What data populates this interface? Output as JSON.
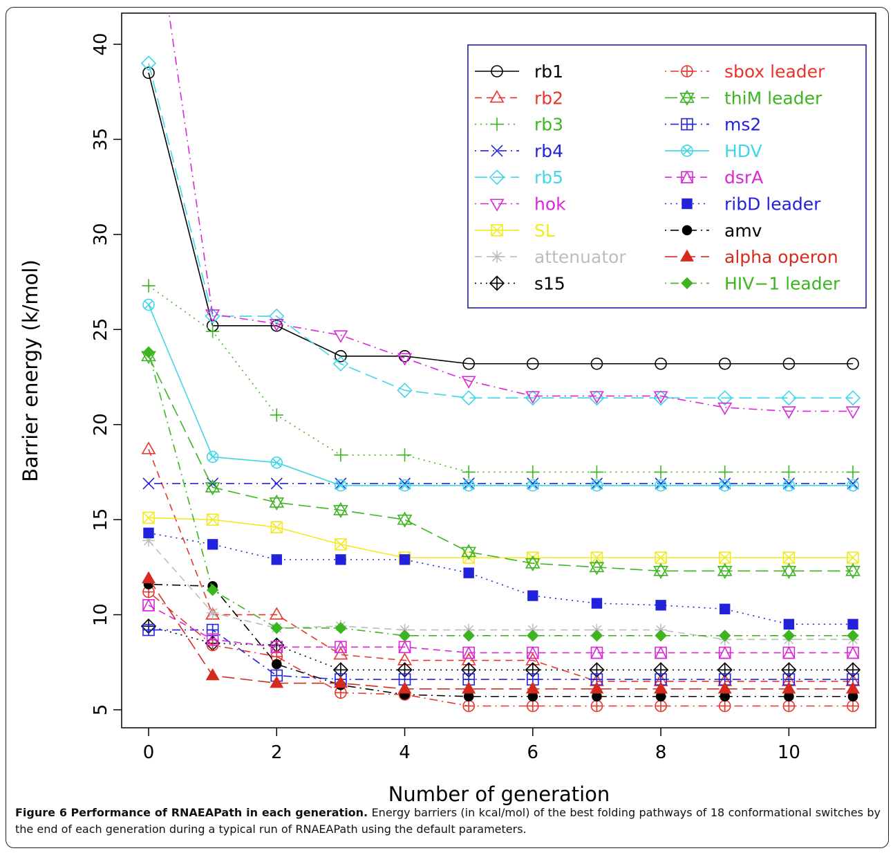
{
  "caption": {
    "figure_label": "Figure 6",
    "title": "Performance of RNAEAPath in each generation.",
    "text": "Energy barriers (in kcal/mol) of the best folding pathways of 18 conformational switches by the end of each generation during a typical run of RNAEAPath using the default parameters."
  },
  "chart_data": {
    "type": "line",
    "xlabel": "Number of generation",
    "ylabel": "Barrier energy (k/mol)",
    "xlim": [
      -0.6,
      11.6
    ],
    "ylim": [
      4.3,
      41
    ],
    "x_ticks": [
      0,
      2,
      4,
      6,
      8,
      10
    ],
    "y_ticks": [
      5,
      10,
      15,
      20,
      25,
      30,
      35,
      40
    ],
    "grid": false,
    "legend_position": "top-right",
    "x": [
      0,
      1,
      2,
      3,
      4,
      5,
      6,
      7,
      8,
      9,
      10,
      11
    ],
    "series": [
      {
        "name": "rb1",
        "color": "#000000",
        "dash": "solid",
        "marker": "circle-open",
        "values": [
          38.5,
          25.2,
          25.2,
          23.6,
          23.6,
          23.2,
          23.2,
          23.2,
          23.2,
          23.2,
          23.2,
          23.2
        ]
      },
      {
        "name": "rb2",
        "color": "#e8342a",
        "dash": "dashed",
        "marker": "triangle-up-open",
        "values": [
          18.7,
          10.0,
          10.0,
          7.9,
          7.6,
          7.6,
          7.6,
          6.5,
          6.5,
          6.5,
          6.5,
          6.5
        ]
      },
      {
        "name": "rb3",
        "color": "#3cb521",
        "dash": "dotted",
        "marker": "plus",
        "values": [
          27.3,
          24.9,
          20.5,
          18.4,
          18.4,
          17.5,
          17.5,
          17.5,
          17.5,
          17.5,
          17.5,
          17.5
        ]
      },
      {
        "name": "rb4",
        "color": "#2222dd",
        "dash": "dotdash",
        "marker": "cross",
        "values": [
          16.9,
          16.9,
          16.9,
          16.9,
          16.9,
          16.9,
          16.9,
          16.9,
          16.9,
          16.9,
          16.9,
          16.9
        ]
      },
      {
        "name": "rb5",
        "color": "#3fd6e6",
        "dash": "longdash",
        "marker": "diamond-open",
        "values": [
          39.0,
          25.7,
          25.7,
          23.2,
          21.8,
          21.4,
          21.4,
          21.4,
          21.4,
          21.4,
          21.4,
          21.4
        ]
      },
      {
        "name": "hok",
        "color": "#d728d7",
        "dash": "dotdash",
        "marker": "triangle-down-open",
        "values": [
          49.0,
          25.8,
          25.3,
          24.7,
          23.5,
          22.3,
          21.5,
          21.5,
          21.5,
          20.9,
          20.7,
          20.7
        ]
      },
      {
        "name": "SL",
        "color": "#f2ea1f",
        "dash": "solid",
        "marker": "square-x",
        "values": [
          15.1,
          15.0,
          14.6,
          13.7,
          13.0,
          13.0,
          13.0,
          13.0,
          13.0,
          13.0,
          13.0,
          13.0
        ]
      },
      {
        "name": "attenuator",
        "color": "#bdbdbd",
        "dash": "dashed",
        "marker": "asterisk",
        "values": [
          13.9,
          10.1,
          9.3,
          9.4,
          9.2,
          9.2,
          9.2,
          9.2,
          9.2,
          8.7,
          8.7,
          8.7
        ]
      },
      {
        "name": "s15",
        "color": "#000000",
        "dash": "dotted",
        "marker": "diamond-plus",
        "values": [
          9.4,
          8.5,
          8.4,
          7.1,
          7.1,
          7.1,
          7.1,
          7.1,
          7.1,
          7.1,
          7.1,
          7.1
        ]
      },
      {
        "name": "sbox leader",
        "color": "#e8342a",
        "dash": "dotdash",
        "marker": "circle-plus",
        "values": [
          11.2,
          8.4,
          7.8,
          5.9,
          5.8,
          5.2,
          5.2,
          5.2,
          5.2,
          5.2,
          5.2,
          5.2
        ]
      },
      {
        "name": "thiM leader",
        "color": "#3cb521",
        "dash": "longdash",
        "marker": "star-of-david",
        "values": [
          23.6,
          16.7,
          15.9,
          15.5,
          15.0,
          13.3,
          12.7,
          12.5,
          12.3,
          12.3,
          12.3,
          12.3
        ]
      },
      {
        "name": "ms2",
        "color": "#2222dd",
        "dash": "dotdash",
        "marker": "square-plus",
        "values": [
          9.2,
          9.2,
          6.8,
          6.6,
          6.6,
          6.6,
          6.6,
          6.6,
          6.6,
          6.6,
          6.6,
          6.6
        ]
      },
      {
        "name": "HDV",
        "color": "#3fd6e6",
        "dash": "solid",
        "marker": "circle-x",
        "values": [
          26.3,
          18.3,
          18.0,
          16.8,
          16.8,
          16.8,
          16.8,
          16.8,
          16.8,
          16.8,
          16.8,
          16.8
        ]
      },
      {
        "name": "dsrA",
        "color": "#d728d7",
        "dash": "dashed",
        "marker": "square-triangle",
        "values": [
          10.5,
          8.7,
          8.3,
          8.3,
          8.3,
          8.0,
          8.0,
          8.0,
          8.0,
          8.0,
          8.0,
          8.0
        ]
      },
      {
        "name": "ribD leader",
        "color": "#2222dd",
        "dash": "dotted",
        "marker": "square-filled",
        "values": [
          14.3,
          13.7,
          12.9,
          12.9,
          12.9,
          12.2,
          11.0,
          10.6,
          10.5,
          10.3,
          9.5,
          9.5
        ]
      },
      {
        "name": "amv",
        "color": "#000000",
        "dash": "dotdash",
        "marker": "circle-filled",
        "values": [
          11.6,
          11.5,
          7.4,
          6.3,
          5.8,
          5.7,
          5.7,
          5.7,
          5.7,
          5.7,
          5.7,
          5.7
        ]
      },
      {
        "name": "alpha operon",
        "color": "#d62a1e",
        "dash": "longdash",
        "marker": "triangle-filled",
        "values": [
          11.9,
          6.8,
          6.4,
          6.4,
          6.1,
          6.1,
          6.1,
          6.1,
          6.1,
          6.1,
          6.1,
          6.1
        ]
      },
      {
        "name": "HIV−1 leader",
        "color": "#3cb521",
        "dash": "dotdash",
        "marker": "diamond-filled",
        "values": [
          23.8,
          11.3,
          9.3,
          9.3,
          8.9,
          8.9,
          8.9,
          8.9,
          8.9,
          8.9,
          8.9,
          8.9
        ]
      }
    ]
  }
}
